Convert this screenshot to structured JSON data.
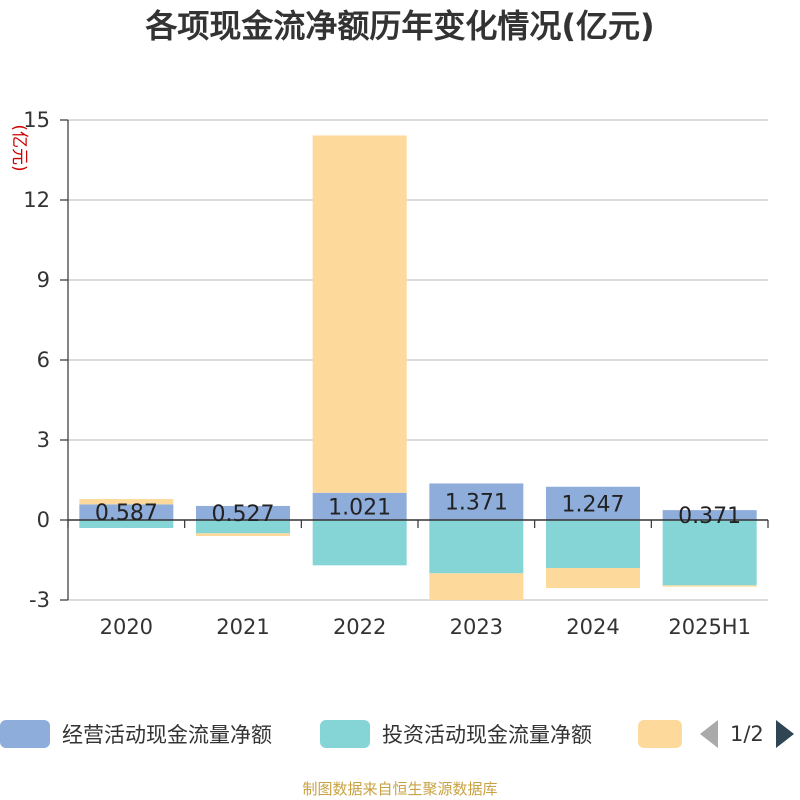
{
  "chart_data": {
    "type": "bar",
    "title": "各项现金流净额历年变化情况(亿元)",
    "ylabel": "(亿元)",
    "xlabel": "",
    "categories": [
      "2020",
      "2021",
      "2022",
      "2023",
      "2024",
      "2025H1"
    ],
    "ylim": [
      -3,
      15
    ],
    "yticks": [
      -3,
      0,
      3,
      6,
      9,
      12,
      15
    ],
    "stacked": true,
    "grid": true,
    "legend_position": "bottom",
    "series": [
      {
        "name": "经营活动现金流量净额",
        "color": "#8eaddb",
        "values": [
          0.587,
          0.527,
          1.021,
          1.371,
          1.247,
          0.371
        ],
        "labels": [
          "0.587",
          "0.527",
          "1.021",
          "1.371",
          "1.247",
          "0.371"
        ]
      },
      {
        "name": "投资活动现金流量净额",
        "color": "#86d5d6",
        "values": [
          -0.3,
          -0.5,
          -1.7,
          -2.0,
          -1.8,
          -2.45
        ]
      },
      {
        "name": "",
        "color": "#fdd99b",
        "values": [
          0.2,
          -0.1,
          13.4,
          -1.0,
          -0.75,
          -0.05
        ]
      }
    ]
  },
  "legend": {
    "page": "1/2"
  },
  "source": "制图数据来自恒生聚源数据库"
}
